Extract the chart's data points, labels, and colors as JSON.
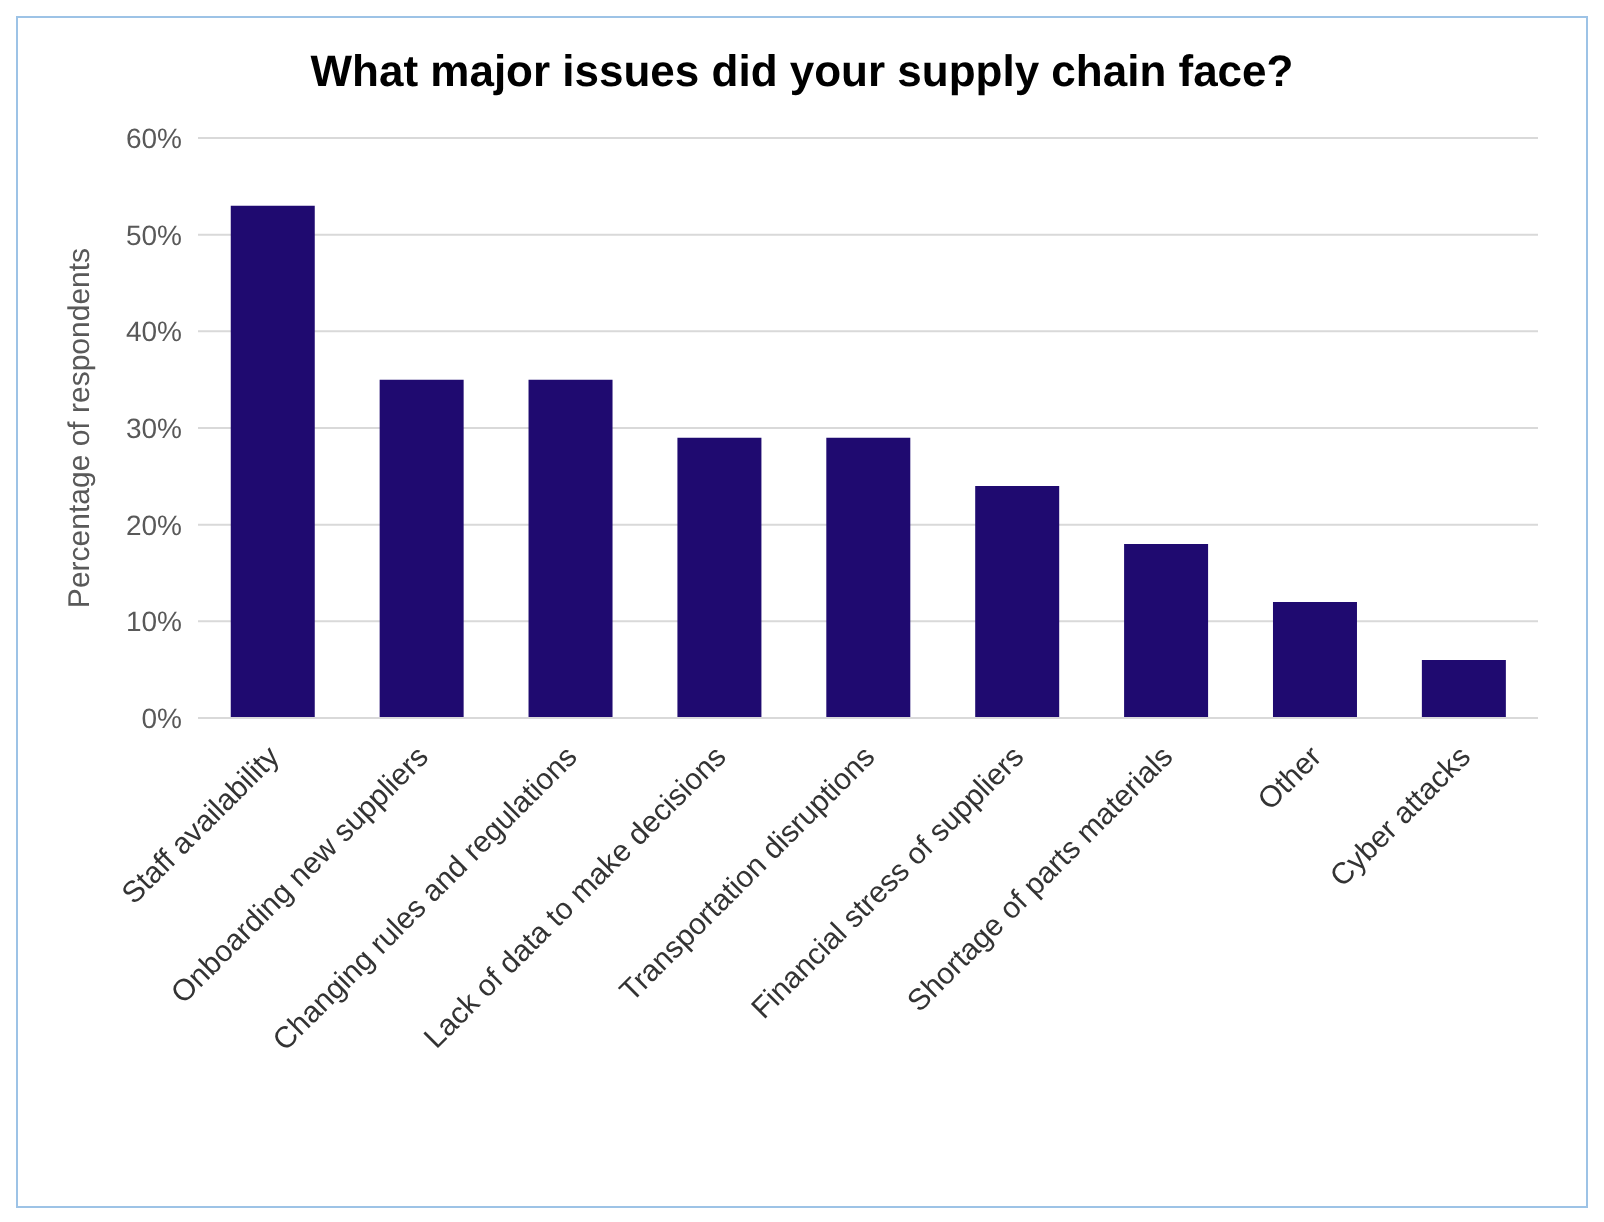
{
  "chart_data": {
    "type": "bar",
    "title": "What major issues did your supply chain face?",
    "ylabel": "Percentage of respondents",
    "categories": [
      "Staff availability",
      "Onboarding new suppliers",
      "Changing rules and regulations",
      "Lack of data to make decisions",
      "Transportation disruptions",
      "Financial stress of suppliers",
      "Shortage of parts materials",
      "Other",
      "Cyber attacks"
    ],
    "values": [
      53,
      35,
      35,
      29,
      29,
      24,
      18,
      12,
      6
    ],
    "color": "#1f0a70",
    "ylim": [
      0,
      60
    ],
    "yticks": [
      {
        "value": 0,
        "label": "0%"
      },
      {
        "value": 10,
        "label": "10%"
      },
      {
        "value": 20,
        "label": "20%"
      },
      {
        "value": 30,
        "label": "30%"
      },
      {
        "value": 40,
        "label": "40%"
      },
      {
        "value": 50,
        "label": "50%"
      },
      {
        "value": 60,
        "label": "60%"
      }
    ],
    "grid": "y",
    "legend": false
  }
}
